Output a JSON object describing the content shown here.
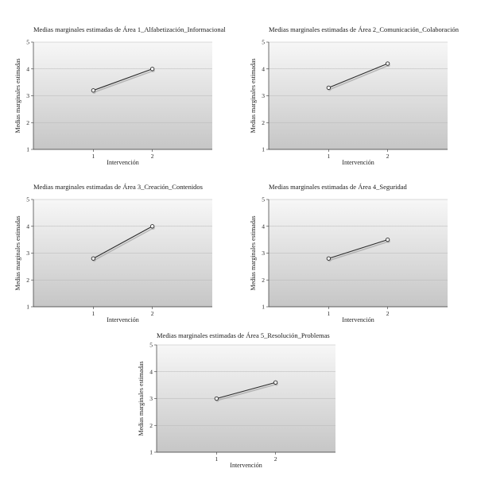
{
  "chart_data": [
    {
      "type": "line",
      "title": "Medias marginales estimadas de Área 1_Alfabetización_Informacional",
      "xlabel": "Intervención",
      "ylabel": "Medias marginales estimadas",
      "categories": [
        "1",
        "2"
      ],
      "values": [
        3.2,
        4.0
      ],
      "ylim": [
        1,
        5
      ],
      "yticks": [
        "1",
        "2",
        "3",
        "4",
        "5"
      ],
      "grid": true
    },
    {
      "type": "line",
      "title": "Medias marginales estimadas de Área 2_Comunicación_Colaboración",
      "xlabel": "Intervención",
      "ylabel": "Medias marginales estimadas",
      "categories": [
        "1",
        "2"
      ],
      "values": [
        3.3,
        4.2
      ],
      "ylim": [
        1,
        5
      ],
      "yticks": [
        "1",
        "2",
        "3",
        "4",
        "5"
      ],
      "grid": true
    },
    {
      "type": "line",
      "title": "Medias marginales estimadas de Área 3_Creación_Contenidos",
      "xlabel": "Intervención",
      "ylabel": "Medias marginales estimadas",
      "categories": [
        "1",
        "2"
      ],
      "values": [
        2.8,
        4.0
      ],
      "ylim": [
        1,
        5
      ],
      "yticks": [
        "1",
        "2",
        "3",
        "4",
        "5"
      ],
      "grid": true
    },
    {
      "type": "line",
      "title": "Medias marginales estimadas de Área 4_Seguridad",
      "xlabel": "Intervención",
      "ylabel": "Medias marginales estimadas",
      "categories": [
        "1",
        "2"
      ],
      "values": [
        2.8,
        3.5
      ],
      "ylim": [
        1,
        5
      ],
      "yticks": [
        "1",
        "2",
        "3",
        "4",
        "5"
      ],
      "grid": true
    },
    {
      "type": "line",
      "title": "Medias marginales estimadas de Área 5_Resolución_Problemas",
      "xlabel": "Intervención",
      "ylabel": "Medias marginales estimadas",
      "categories": [
        "1",
        "2"
      ],
      "values": [
        3.0,
        3.6
      ],
      "ylim": [
        1,
        5
      ],
      "yticks": [
        "1",
        "2",
        "3",
        "4",
        "5"
      ],
      "grid": true
    }
  ]
}
